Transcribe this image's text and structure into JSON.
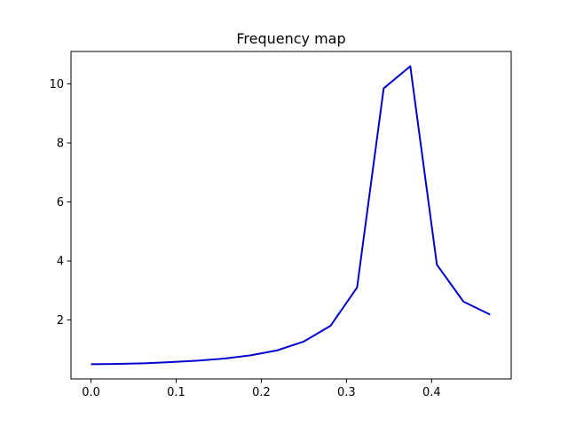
{
  "chart_data": {
    "type": "line",
    "title": "Frequency map",
    "xlabel": "",
    "ylabel": "",
    "xlim": [
      -0.0235,
      0.4935
    ],
    "ylim": [
      0.0,
      11.1
    ],
    "x_ticks": [
      0.0,
      0.1,
      0.2,
      0.3,
      0.4
    ],
    "x_tick_labels": [
      "0.0",
      "0.1",
      "0.2",
      "0.3",
      "0.4"
    ],
    "y_ticks": [
      2,
      4,
      6,
      8,
      10
    ],
    "y_tick_labels": [
      "2",
      "4",
      "6",
      "8",
      "10"
    ],
    "grid": false,
    "legend": "none",
    "series": [
      {
        "color": "#0000cc",
        "x": [
          0.0,
          0.03125,
          0.0625,
          0.09375,
          0.125,
          0.15625,
          0.1875,
          0.21875,
          0.25,
          0.28125,
          0.3125,
          0.34375,
          0.375,
          0.40625,
          0.4375,
          0.46875
        ],
        "y": [
          0.5,
          0.51,
          0.53,
          0.57,
          0.62,
          0.69,
          0.8,
          0.97,
          1.27,
          1.8,
          3.1,
          9.85,
          10.6,
          3.87,
          2.62,
          2.18
        ]
      }
    ]
  }
}
